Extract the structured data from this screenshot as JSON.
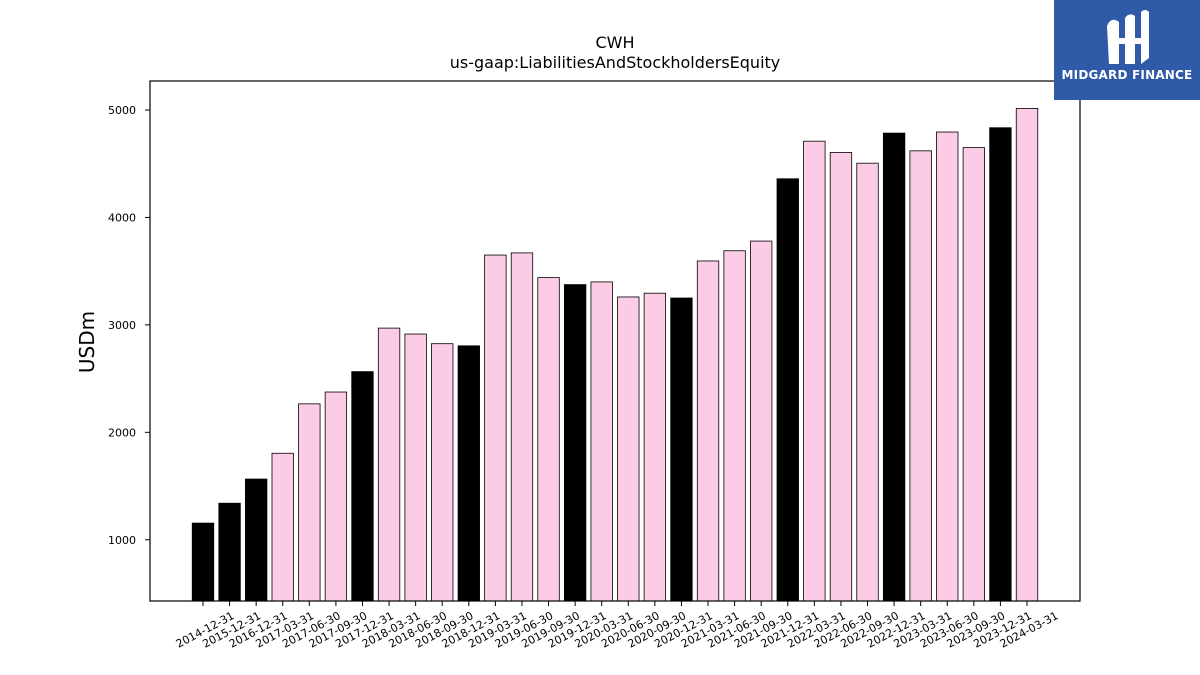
{
  "chart_data": {
    "type": "bar",
    "title": "CWH",
    "subtitle": "us-gaap:LiabilitiesAndStockholdersEquity",
    "xlabel": "",
    "ylabel": "USDm",
    "ylim": [
      430,
      5270
    ],
    "yticks": [
      1000,
      2000,
      3000,
      4000,
      5000
    ],
    "grid": false,
    "colors": {
      "annual": "#000000",
      "quarterly": "#fccce6",
      "edge": "#000000"
    },
    "categories": [
      "2014-12-31",
      "2015-12-31",
      "2016-12-31",
      "2017-03-31",
      "2017-06-30",
      "2017-09-30",
      "2017-12-31",
      "2018-03-31",
      "2018-06-30",
      "2018-09-30",
      "2018-12-31",
      "2019-03-31",
      "2019-06-30",
      "2019-09-30",
      "2019-12-31",
      "2020-03-31",
      "2020-06-30",
      "2020-09-30",
      "2020-12-31",
      "2021-03-31",
      "2021-06-30",
      "2021-09-30",
      "2021-12-31",
      "2022-03-31",
      "2022-06-30",
      "2022-09-30",
      "2022-12-31",
      "2023-03-31",
      "2023-06-30",
      "2023-09-30",
      "2023-12-31",
      "2024-03-31"
    ],
    "values": [
      1155,
      1340,
      1565,
      1805,
      2265,
      2375,
      2565,
      2970,
      2915,
      2825,
      2805,
      3650,
      3670,
      3440,
      3375,
      3400,
      3260,
      3295,
      3250,
      3595,
      3690,
      3780,
      4360,
      4710,
      4605,
      4505,
      4785,
      4620,
      4795,
      4650,
      4835,
      5015
    ],
    "bar_kind": [
      "annual",
      "annual",
      "annual",
      "quarterly",
      "quarterly",
      "quarterly",
      "annual",
      "quarterly",
      "quarterly",
      "quarterly",
      "annual",
      "quarterly",
      "quarterly",
      "quarterly",
      "annual",
      "quarterly",
      "quarterly",
      "quarterly",
      "annual",
      "quarterly",
      "quarterly",
      "quarterly",
      "annual",
      "quarterly",
      "quarterly",
      "quarterly",
      "annual",
      "quarterly",
      "quarterly",
      "quarterly",
      "annual",
      "quarterly"
    ]
  },
  "logo": {
    "text": "MIDGARD FINANCE",
    "icon": "midgard-logo-icon",
    "background": "#2f5aa8"
  }
}
